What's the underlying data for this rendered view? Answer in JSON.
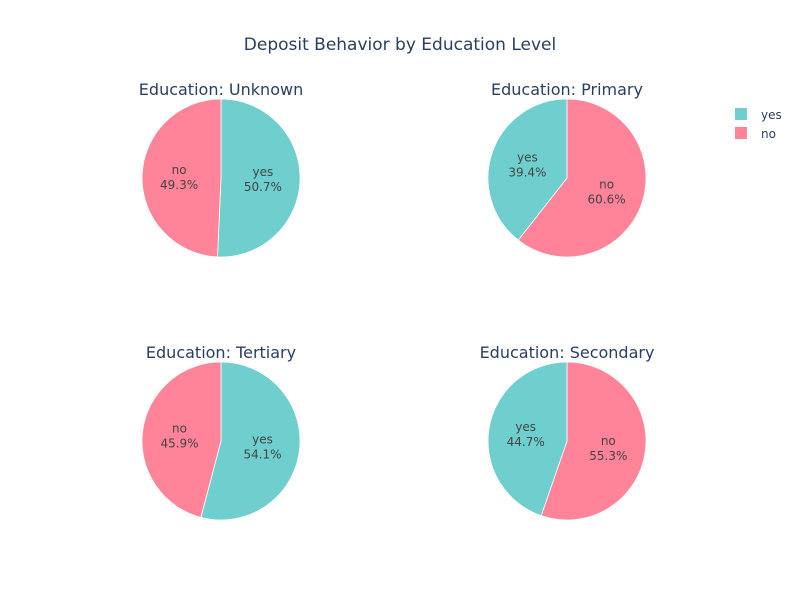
{
  "chart_data": {
    "type": "pie",
    "title": "Deposit Behavior by Education Level",
    "legend": {
      "placement": "top-right",
      "entries": [
        {
          "label": "yes",
          "color": "#6fcfcf"
        },
        {
          "label": "no",
          "color": "#ff8399"
        }
      ]
    },
    "pies": [
      {
        "title": "Education: Unknown",
        "slices": [
          {
            "label": "yes",
            "value": 50.7,
            "display": "50.7%",
            "color": "#6fcfcf"
          },
          {
            "label": "no",
            "value": 49.3,
            "display": "49.3%",
            "color": "#ff8399"
          }
        ]
      },
      {
        "title": "Education: Primary",
        "slices": [
          {
            "label": "no",
            "value": 60.6,
            "display": "60.6%",
            "color": "#ff8399"
          },
          {
            "label": "yes",
            "value": 39.4,
            "display": "39.4%",
            "color": "#6fcfcf"
          }
        ]
      },
      {
        "title": "Education: Tertiary",
        "slices": [
          {
            "label": "yes",
            "value": 54.1,
            "display": "54.1%",
            "color": "#6fcfcf"
          },
          {
            "label": "no",
            "value": 45.9,
            "display": "45.9%",
            "color": "#ff8399"
          }
        ]
      },
      {
        "title": "Education: Secondary",
        "slices": [
          {
            "label": "no",
            "value": 55.3,
            "display": "55.3%",
            "color": "#ff8399"
          },
          {
            "label": "yes",
            "value": 44.7,
            "display": "44.7%",
            "color": "#6fcfcf"
          }
        ]
      }
    ]
  }
}
